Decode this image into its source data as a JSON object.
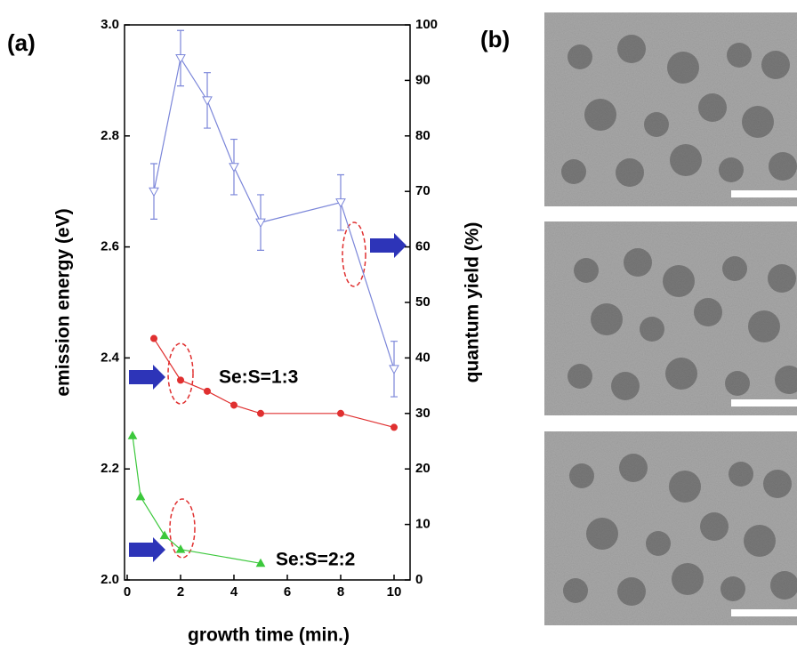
{
  "chart_data": {
    "type": "line",
    "panel_labels": [
      "(a)",
      "(b)"
    ],
    "xlabel": "growth time (min.)",
    "ylabel": "emission energy (eV)",
    "y2label": "quantum yield (%)",
    "xlim": [
      -0.1,
      10.6
    ],
    "xticks": [
      0,
      2,
      4,
      6,
      8,
      10
    ],
    "ylim": [
      2.0,
      3.0
    ],
    "yticks": [
      {
        "value": 2.0,
        "label": "2.0"
      },
      2.2,
      2.4,
      2.6,
      2.8,
      {
        "value": 3.0,
        "label": "3.0"
      }
    ],
    "y2lim": [
      0,
      100
    ],
    "y2ticks": [
      0,
      10,
      20,
      30,
      40,
      50,
      60,
      70,
      80,
      90,
      100
    ],
    "series": [
      {
        "color": "#7b86d9",
        "marker": "triangle-down-open",
        "axis": "y2",
        "x": [
          1,
          2,
          3,
          4,
          5,
          8,
          10
        ],
        "values": [
          70,
          94,
          86.4,
          74.4,
          64.4,
          68,
          38
        ],
        "errors": [
          5,
          5,
          5,
          5,
          5,
          5,
          5
        ]
      },
      {
        "name": "Se:S=1:3",
        "color": "#e03030",
        "marker": "circle",
        "x": [
          1,
          2,
          3,
          4,
          5,
          8,
          10
        ],
        "values": [
          2.435,
          2.36,
          2.34,
          2.315,
          2.3,
          2.3,
          2.275
        ]
      },
      {
        "name": "Se:S=2:2",
        "color": "#3cc83c",
        "marker": "triangle",
        "x": [
          0.2,
          0.5,
          1.4,
          2,
          5
        ],
        "values": [
          2.26,
          2.15,
          2.08,
          2.055,
          2.03
        ]
      }
    ]
  }
}
